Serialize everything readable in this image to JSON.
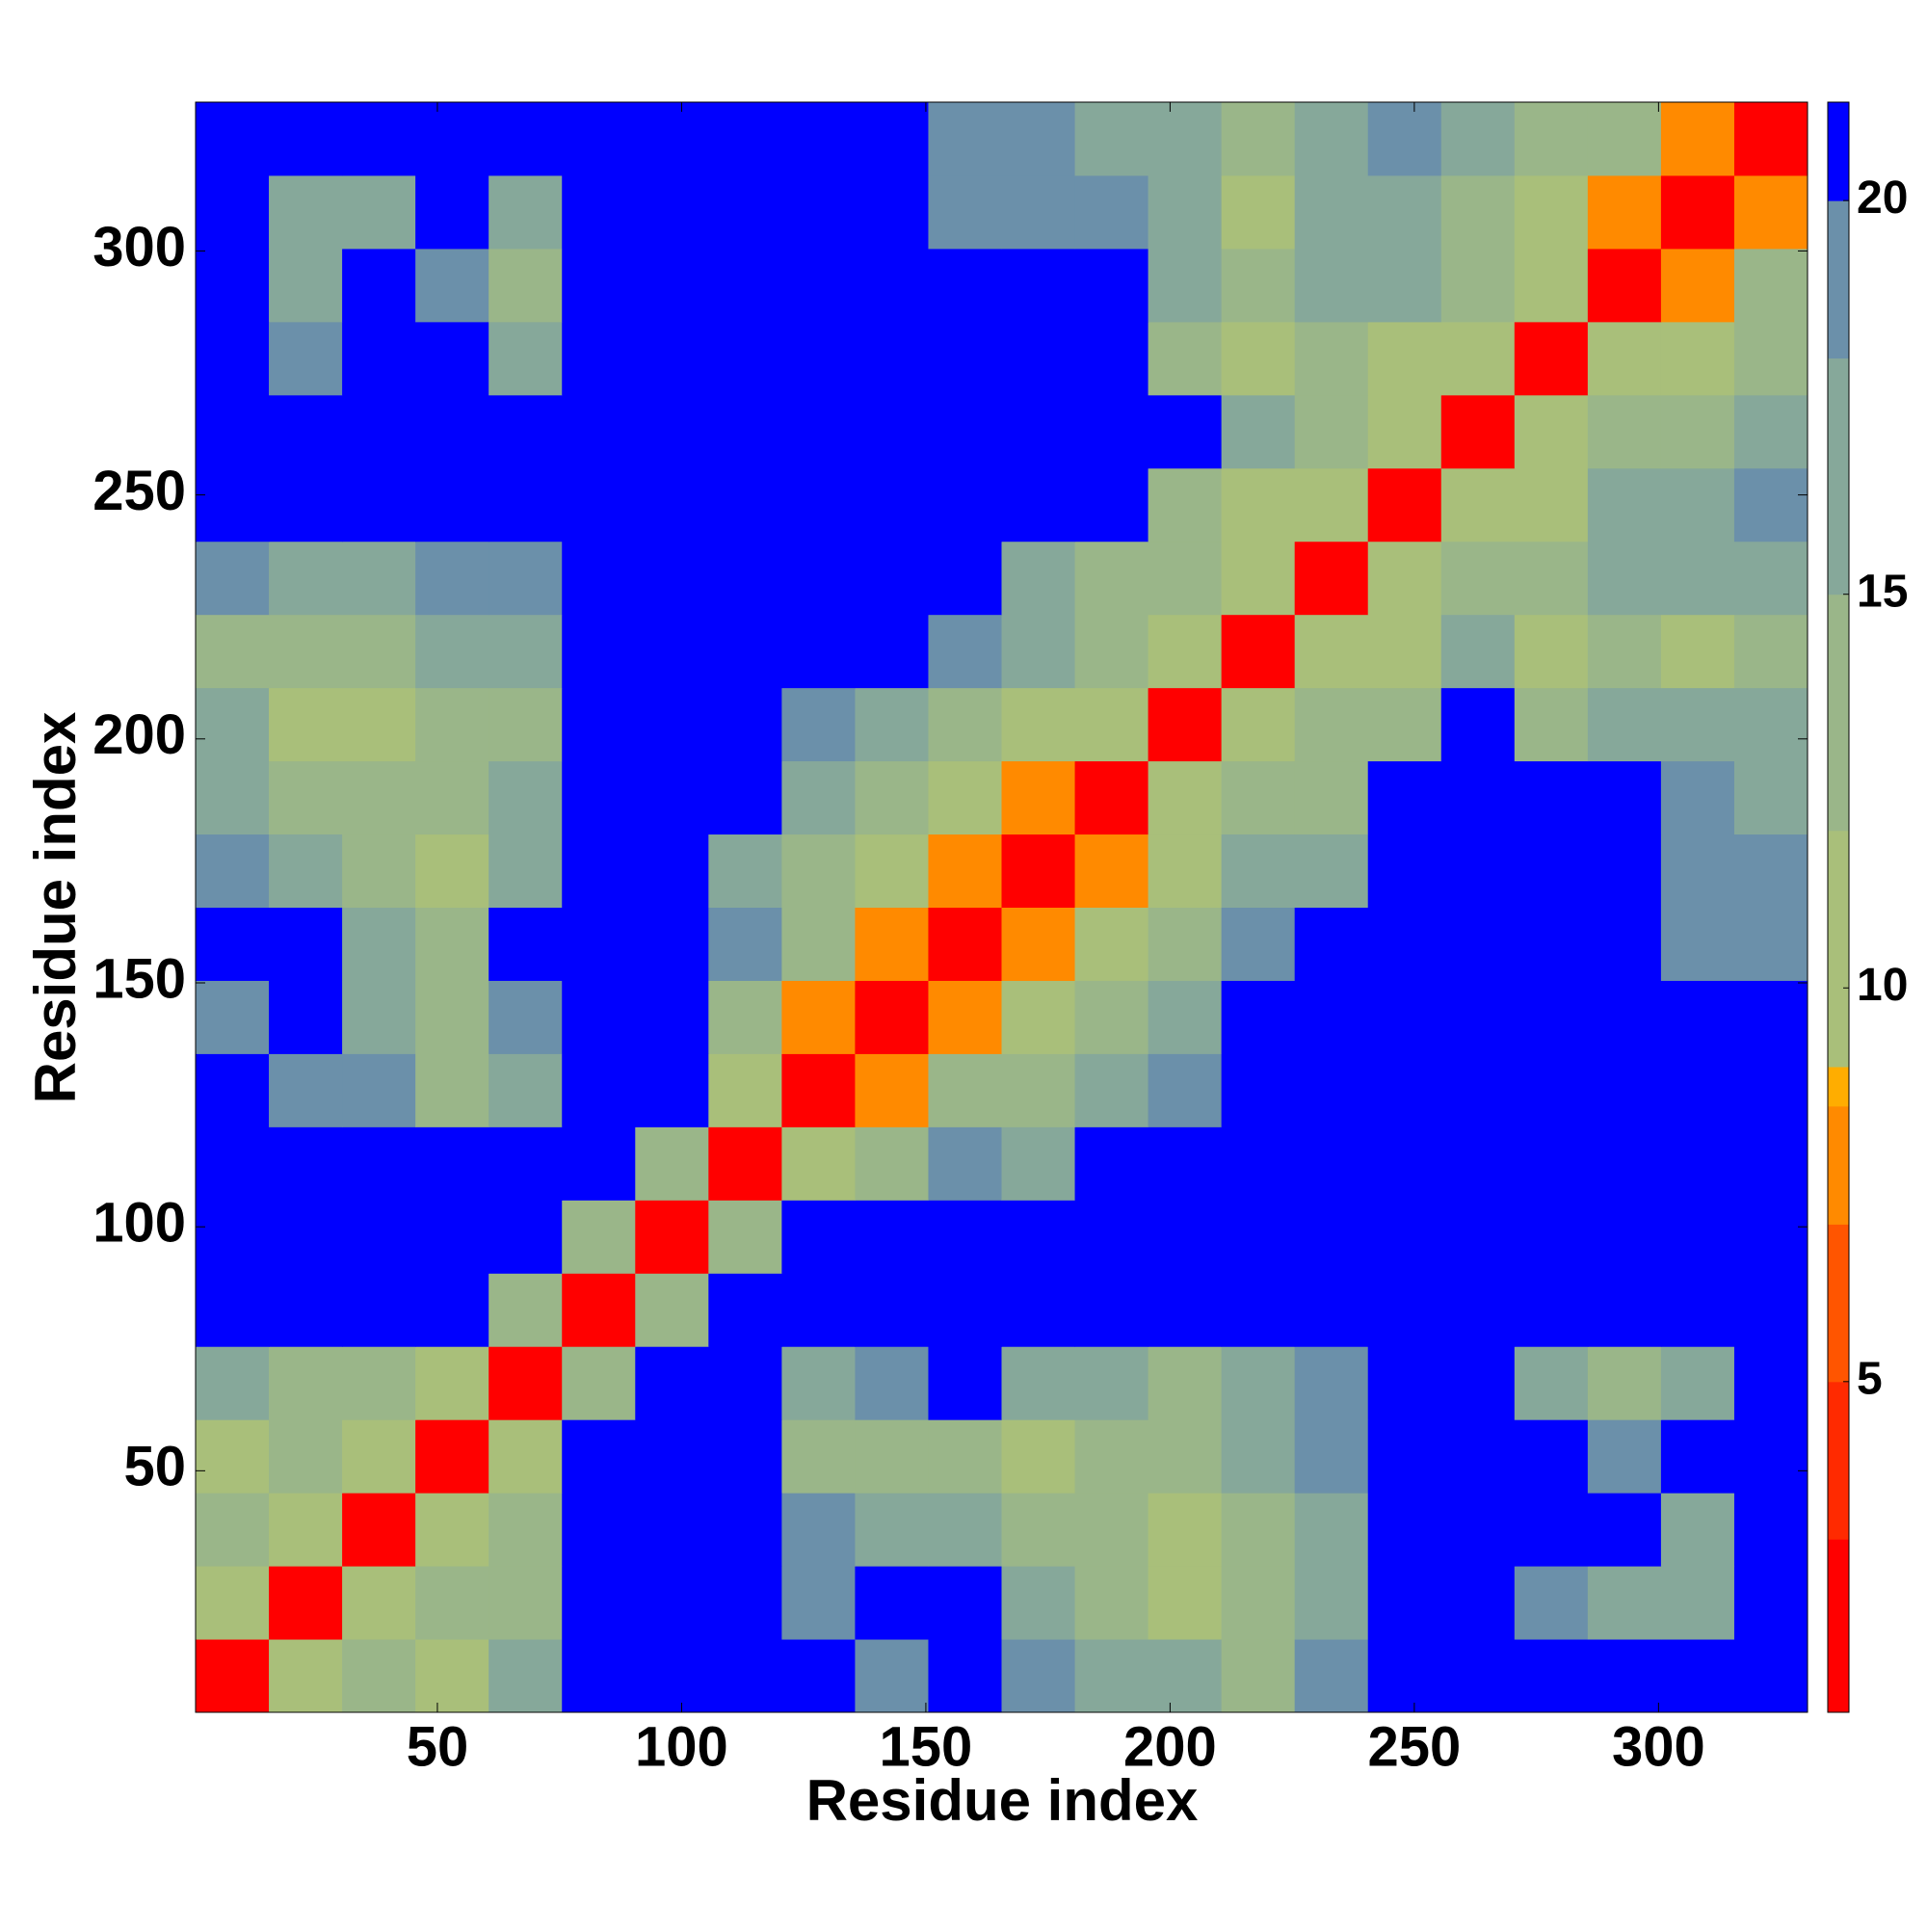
{
  "chart_data": {
    "type": "heatmap",
    "x_label": "Residue index",
    "y_label": "Residue index",
    "xbins": [
      0.5,
      15.5,
      30.5,
      45.5,
      60.5,
      75.5,
      90.5,
      105.5,
      120.5,
      135.5,
      150.5,
      165.5,
      180.5,
      195.5,
      210.5,
      225.5,
      240.5,
      255.5,
      270.5,
      285.5,
      300.5,
      315.5,
      330.5
    ],
    "ybins": [
      0.5,
      15.5,
      30.5,
      45.5,
      60.5,
      75.5,
      90.5,
      105.5,
      120.5,
      135.5,
      150.5,
      165.5,
      180.5,
      195.5,
      210.5,
      225.5,
      240.5,
      255.5,
      270.5,
      285.5,
      300.5,
      315.5,
      330.5
    ],
    "z": [
      [
        2,
        10,
        12,
        11,
        16,
        21,
        21,
        21,
        21,
        19,
        21,
        19,
        17,
        15,
        14,
        18,
        21,
        21,
        21,
        21,
        21,
        21
      ],
      [
        10,
        2,
        10,
        12,
        14,
        21,
        21,
        21,
        19,
        20,
        21,
        17,
        13,
        11,
        12,
        15,
        21,
        21,
        19,
        17,
        15,
        21
      ],
      [
        12,
        10,
        2,
        10,
        13,
        21,
        21,
        21,
        18,
        16,
        17,
        12,
        13,
        11,
        13,
        17,
        21,
        21,
        21,
        21,
        17,
        21
      ],
      [
        11,
        12,
        10,
        2,
        10,
        21,
        21,
        21,
        13,
        14,
        14,
        10,
        14,
        14,
        16,
        19,
        21,
        21,
        21,
        18,
        21,
        21
      ],
      [
        16,
        14,
        13,
        10,
        2,
        12,
        21,
        21,
        17,
        19,
        21,
        17,
        15,
        13,
        16,
        18,
        21,
        21,
        16,
        14,
        17,
        21
      ],
      [
        21,
        21,
        21,
        21,
        12,
        2,
        13,
        21,
        21,
        21,
        21,
        21,
        21,
        21,
        21,
        21,
        21,
        21,
        21,
        21,
        21,
        21
      ],
      [
        21,
        21,
        21,
        21,
        21,
        13,
        2,
        13,
        21,
        21,
        21,
        21,
        21,
        21,
        21,
        21,
        21,
        21,
        21,
        21,
        21,
        21
      ],
      [
        21,
        21,
        21,
        21,
        21,
        21,
        13,
        2,
        11,
        14,
        18,
        17,
        21,
        21,
        21,
        21,
        21,
        21,
        21,
        21,
        21,
        21
      ],
      [
        21,
        19,
        18,
        13,
        17,
        21,
        21,
        11,
        2,
        8,
        12,
        13,
        15,
        19,
        21,
        21,
        21,
        21,
        21,
        21,
        21,
        21
      ],
      [
        19,
        20,
        16,
        14,
        19,
        21,
        21,
        14,
        8,
        2,
        8,
        10,
        12,
        16,
        20,
        21,
        21,
        21,
        21,
        21,
        21,
        21
      ],
      [
        21,
        21,
        17,
        14,
        21,
        21,
        21,
        18,
        12,
        8,
        2,
        8,
        10,
        13,
        18,
        21,
        21,
        21,
        21,
        21,
        19,
        19
      ],
      [
        19,
        17,
        12,
        10,
        17,
        21,
        21,
        17,
        13,
        10,
        8,
        2,
        8,
        11,
        15,
        16,
        21,
        21,
        21,
        21,
        19,
        19
      ],
      [
        17,
        13,
        13,
        14,
        15,
        21,
        21,
        21,
        15,
        12,
        10,
        8,
        2,
        9,
        12,
        14,
        21,
        21,
        21,
        21,
        19,
        16
      ],
      [
        15,
        11,
        11,
        14,
        13,
        21,
        21,
        21,
        19,
        16,
        13,
        11,
        9,
        2,
        9,
        12,
        14,
        21,
        14,
        16,
        16,
        15
      ],
      [
        14,
        12,
        13,
        16,
        16,
        21,
        21,
        21,
        21,
        20,
        18,
        15,
        12,
        9,
        2,
        9,
        11,
        15,
        11,
        12,
        11,
        12
      ],
      [
        18,
        15,
        17,
        19,
        18,
        21,
        21,
        21,
        21,
        21,
        21,
        16,
        14,
        12,
        9,
        2,
        9,
        13,
        12,
        15,
        15,
        17
      ],
      [
        21,
        21,
        21,
        21,
        21,
        21,
        21,
        21,
        21,
        21,
        21,
        21,
        21,
        14,
        11,
        9,
        2,
        9,
        11,
        15,
        17,
        19
      ],
      [
        21,
        21,
        21,
        21,
        21,
        21,
        21,
        21,
        21,
        21,
        21,
        21,
        21,
        21,
        15,
        13,
        9,
        2,
        9,
        12,
        13,
        16
      ],
      [
        21,
        19,
        21,
        21,
        16,
        21,
        21,
        21,
        21,
        21,
        21,
        21,
        21,
        14,
        11,
        12,
        11,
        9,
        2,
        9,
        11,
        14
      ],
      [
        21,
        17,
        21,
        18,
        14,
        21,
        21,
        21,
        21,
        21,
        21,
        21,
        21,
        16,
        12,
        15,
        15,
        12,
        9,
        2,
        8,
        12
      ],
      [
        21,
        15,
        17,
        21,
        17,
        21,
        21,
        21,
        21,
        21,
        19,
        19,
        19,
        16,
        11,
        15,
        17,
        13,
        11,
        8,
        2,
        8
      ],
      [
        21,
        21,
        21,
        21,
        21,
        21,
        21,
        21,
        21,
        21,
        19,
        19,
        16,
        15,
        12,
        17,
        19,
        16,
        14,
        12,
        8,
        2
      ]
    ],
    "xlim": [
      0.5,
      330.5
    ],
    "ylim": [
      0.5,
      330.5
    ],
    "xticks": [
      50,
      100,
      150,
      200,
      250,
      300
    ],
    "yticks": [
      50,
      100,
      150,
      200,
      250,
      300
    ],
    "clim": [
      0.8,
      21.25
    ],
    "cticks": [
      5,
      10,
      15,
      20
    ],
    "colorscale": [
      [
        0.8,
        "#ff0000"
      ],
      [
        3,
        "#ff2a00"
      ],
      [
        5,
        "#ff5500"
      ],
      [
        7,
        "#ff8a00"
      ],
      [
        8.5,
        "#ffad00"
      ],
      [
        9,
        "#a9bf7a"
      ],
      [
        12,
        "#9ab689"
      ],
      [
        15,
        "#86a89a"
      ],
      [
        18,
        "#6b90aa"
      ],
      [
        20,
        "#0000ff"
      ]
    ]
  }
}
